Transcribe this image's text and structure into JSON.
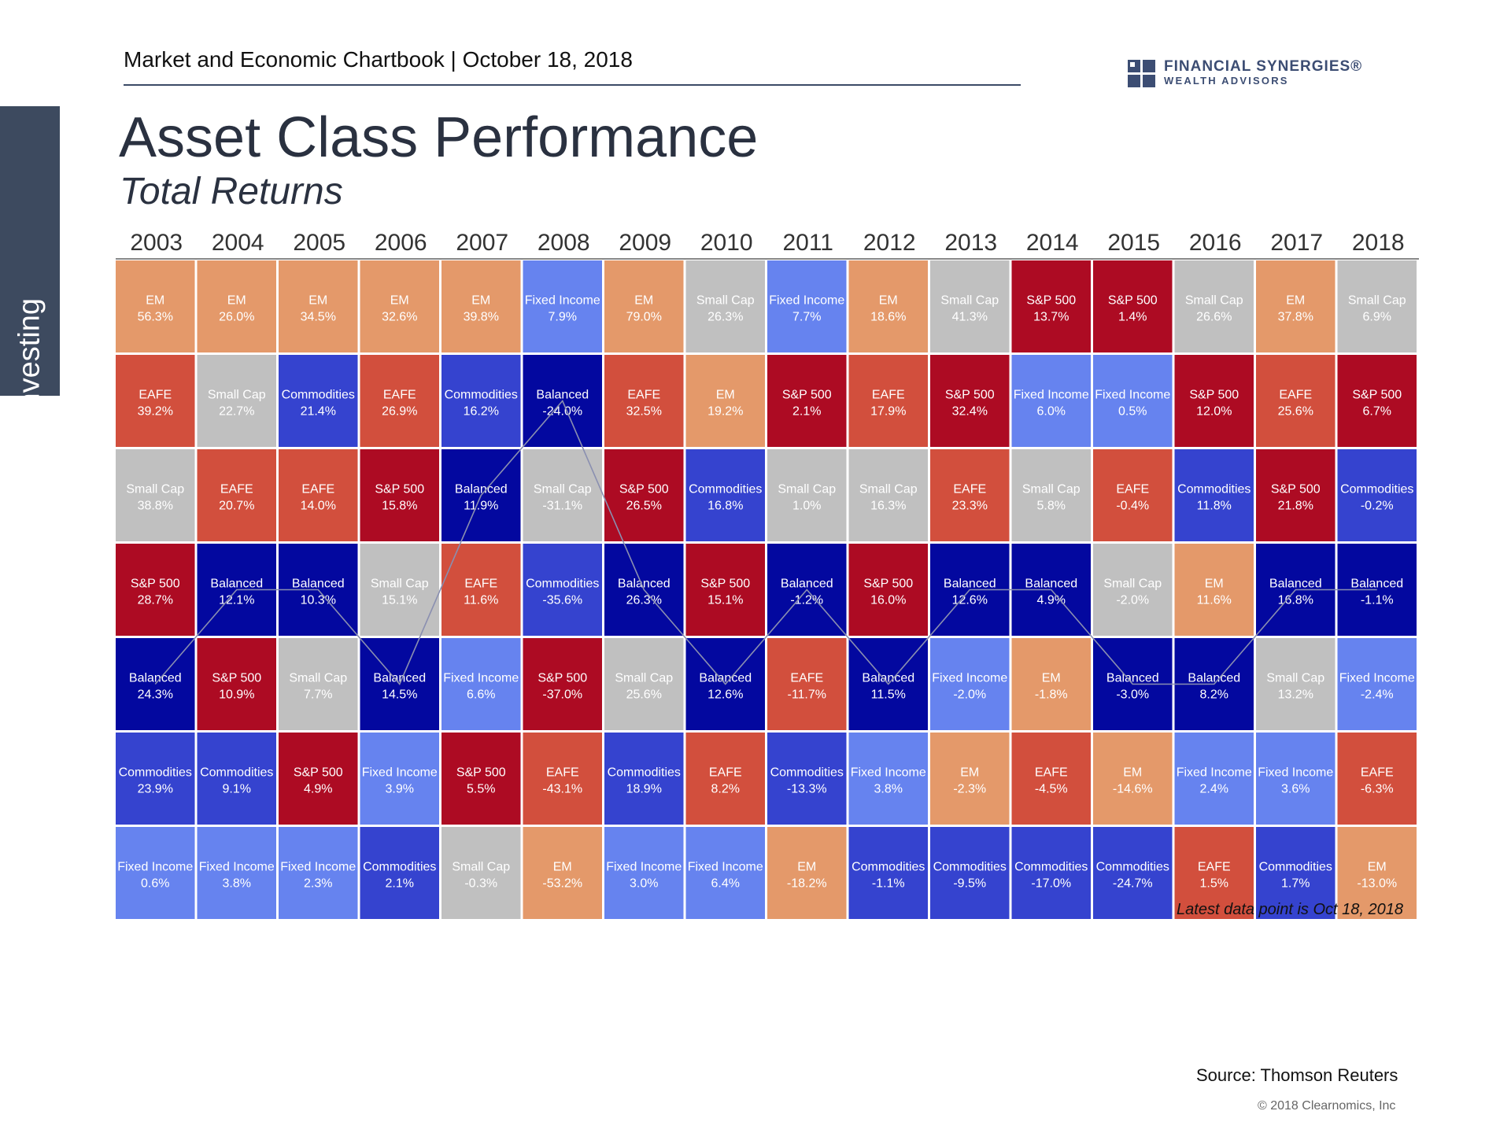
{
  "header": {
    "chartbook_title": "Market and Economic Chartbook | October 18, 2018",
    "logo_line1": "FINANCIAL SYNERGIES®",
    "logo_line2": "WEALTH ADVISORS"
  },
  "side_tab": {
    "label": "Investing"
  },
  "title": "Asset Class Performance",
  "subtitle": "Total Returns",
  "colors": {
    "EM": "#e4996a",
    "EAFE": "#d24f3d",
    "S&P 500": "#ad0b23",
    "Small Cap": "#c0c0c0",
    "Commodities": "#3543cf",
    "Balanced": "#03089f",
    "Fixed Income": "#6683ef"
  },
  "chart_data": {
    "type": "table",
    "note": "Latest data point is Oct 18, 2018",
    "highlight_series": "Balanced",
    "years": [
      "2003",
      "2004",
      "2005",
      "2006",
      "2007",
      "2008",
      "2009",
      "2010",
      "2011",
      "2012",
      "2013",
      "2014",
      "2015",
      "2016",
      "2017",
      "2018"
    ],
    "columns": [
      [
        [
          "EM",
          "56.3%"
        ],
        [
          "EAFE",
          "39.2%"
        ],
        [
          "Small Cap",
          "38.8%"
        ],
        [
          "S&P 500",
          "28.7%"
        ],
        [
          "Balanced",
          "24.3%"
        ],
        [
          "Commodities",
          "23.9%"
        ],
        [
          "Fixed Income",
          "0.6%"
        ]
      ],
      [
        [
          "EM",
          "26.0%"
        ],
        [
          "Small Cap",
          "22.7%"
        ],
        [
          "EAFE",
          "20.7%"
        ],
        [
          "Balanced",
          "12.1%"
        ],
        [
          "S&P 500",
          "10.9%"
        ],
        [
          "Commodities",
          "9.1%"
        ],
        [
          "Fixed Income",
          "3.8%"
        ]
      ],
      [
        [
          "EM",
          "34.5%"
        ],
        [
          "Commodities",
          "21.4%"
        ],
        [
          "EAFE",
          "14.0%"
        ],
        [
          "Balanced",
          "10.3%"
        ],
        [
          "Small Cap",
          "7.7%"
        ],
        [
          "S&P 500",
          "4.9%"
        ],
        [
          "Fixed Income",
          "2.3%"
        ]
      ],
      [
        [
          "EM",
          "32.6%"
        ],
        [
          "EAFE",
          "26.9%"
        ],
        [
          "S&P 500",
          "15.8%"
        ],
        [
          "Small Cap",
          "15.1%"
        ],
        [
          "Balanced",
          "14.5%"
        ],
        [
          "Fixed Income",
          "3.9%"
        ],
        [
          "Commodities",
          "2.1%"
        ]
      ],
      [
        [
          "EM",
          "39.8%"
        ],
        [
          "Commodities",
          "16.2%"
        ],
        [
          "Balanced",
          "11.9%"
        ],
        [
          "EAFE",
          "11.6%"
        ],
        [
          "Fixed Income",
          "6.6%"
        ],
        [
          "S&P 500",
          "5.5%"
        ],
        [
          "Small Cap",
          "-0.3%"
        ]
      ],
      [
        [
          "Fixed Income",
          "7.9%"
        ],
        [
          "Balanced",
          "-24.0%"
        ],
        [
          "Small Cap",
          "-31.1%"
        ],
        [
          "Commodities",
          "-35.6%"
        ],
        [
          "S&P 500",
          "-37.0%"
        ],
        [
          "EAFE",
          "-43.1%"
        ],
        [
          "EM",
          "-53.2%"
        ]
      ],
      [
        [
          "EM",
          "79.0%"
        ],
        [
          "EAFE",
          "32.5%"
        ],
        [
          "S&P 500",
          "26.5%"
        ],
        [
          "Balanced",
          "26.3%"
        ],
        [
          "Small Cap",
          "25.6%"
        ],
        [
          "Commodities",
          "18.9%"
        ],
        [
          "Fixed Income",
          "3.0%"
        ]
      ],
      [
        [
          "Small Cap",
          "26.3%"
        ],
        [
          "EM",
          "19.2%"
        ],
        [
          "Commodities",
          "16.8%"
        ],
        [
          "S&P 500",
          "15.1%"
        ],
        [
          "Balanced",
          "12.6%"
        ],
        [
          "EAFE",
          "8.2%"
        ],
        [
          "Fixed Income",
          "6.4%"
        ]
      ],
      [
        [
          "Fixed Income",
          "7.7%"
        ],
        [
          "S&P 500",
          "2.1%"
        ],
        [
          "Small Cap",
          "1.0%"
        ],
        [
          "Balanced",
          "-1.2%"
        ],
        [
          "EAFE",
          "-11.7%"
        ],
        [
          "Commodities",
          "-13.3%"
        ],
        [
          "EM",
          "-18.2%"
        ]
      ],
      [
        [
          "EM",
          "18.6%"
        ],
        [
          "EAFE",
          "17.9%"
        ],
        [
          "Small Cap",
          "16.3%"
        ],
        [
          "S&P 500",
          "16.0%"
        ],
        [
          "Balanced",
          "11.5%"
        ],
        [
          "Fixed Income",
          "3.8%"
        ],
        [
          "Commodities",
          "-1.1%"
        ]
      ],
      [
        [
          "Small Cap",
          "41.3%"
        ],
        [
          "S&P 500",
          "32.4%"
        ],
        [
          "EAFE",
          "23.3%"
        ],
        [
          "Balanced",
          "12.6%"
        ],
        [
          "Fixed Income",
          "-2.0%"
        ],
        [
          "EM",
          "-2.3%"
        ],
        [
          "Commodities",
          "-9.5%"
        ]
      ],
      [
        [
          "S&P 500",
          "13.7%"
        ],
        [
          "Fixed Income",
          "6.0%"
        ],
        [
          "Small Cap",
          "5.8%"
        ],
        [
          "Balanced",
          "4.9%"
        ],
        [
          "EM",
          "-1.8%"
        ],
        [
          "EAFE",
          "-4.5%"
        ],
        [
          "Commodities",
          "-17.0%"
        ]
      ],
      [
        [
          "S&P 500",
          "1.4%"
        ],
        [
          "Fixed Income",
          "0.5%"
        ],
        [
          "EAFE",
          "-0.4%"
        ],
        [
          "Small Cap",
          "-2.0%"
        ],
        [
          "Balanced",
          "-3.0%"
        ],
        [
          "EM",
          "-14.6%"
        ],
        [
          "Commodities",
          "-24.7%"
        ]
      ],
      [
        [
          "Small Cap",
          "26.6%"
        ],
        [
          "S&P 500",
          "12.0%"
        ],
        [
          "Commodities",
          "11.8%"
        ],
        [
          "EM",
          "11.6%"
        ],
        [
          "Balanced",
          "8.2%"
        ],
        [
          "Fixed Income",
          "2.4%"
        ],
        [
          "EAFE",
          "1.5%"
        ]
      ],
      [
        [
          "EM",
          "37.8%"
        ],
        [
          "EAFE",
          "25.6%"
        ],
        [
          "S&P 500",
          "21.8%"
        ],
        [
          "Balanced",
          "16.8%"
        ],
        [
          "Small Cap",
          "13.2%"
        ],
        [
          "Fixed Income",
          "3.6%"
        ],
        [
          "Commodities",
          "1.7%"
        ]
      ],
      [
        [
          "Small Cap",
          "6.9%"
        ],
        [
          "S&P 500",
          "6.7%"
        ],
        [
          "Commodities",
          "-0.2%"
        ],
        [
          "Balanced",
          "-1.1%"
        ],
        [
          "Fixed Income",
          "-2.4%"
        ],
        [
          "EAFE",
          "-6.3%"
        ],
        [
          "EM",
          "-13.0%"
        ]
      ]
    ]
  },
  "footer": {
    "source": "Source:  Thomson Reuters",
    "copyright": "© 2018 Clearnomics, Inc"
  }
}
